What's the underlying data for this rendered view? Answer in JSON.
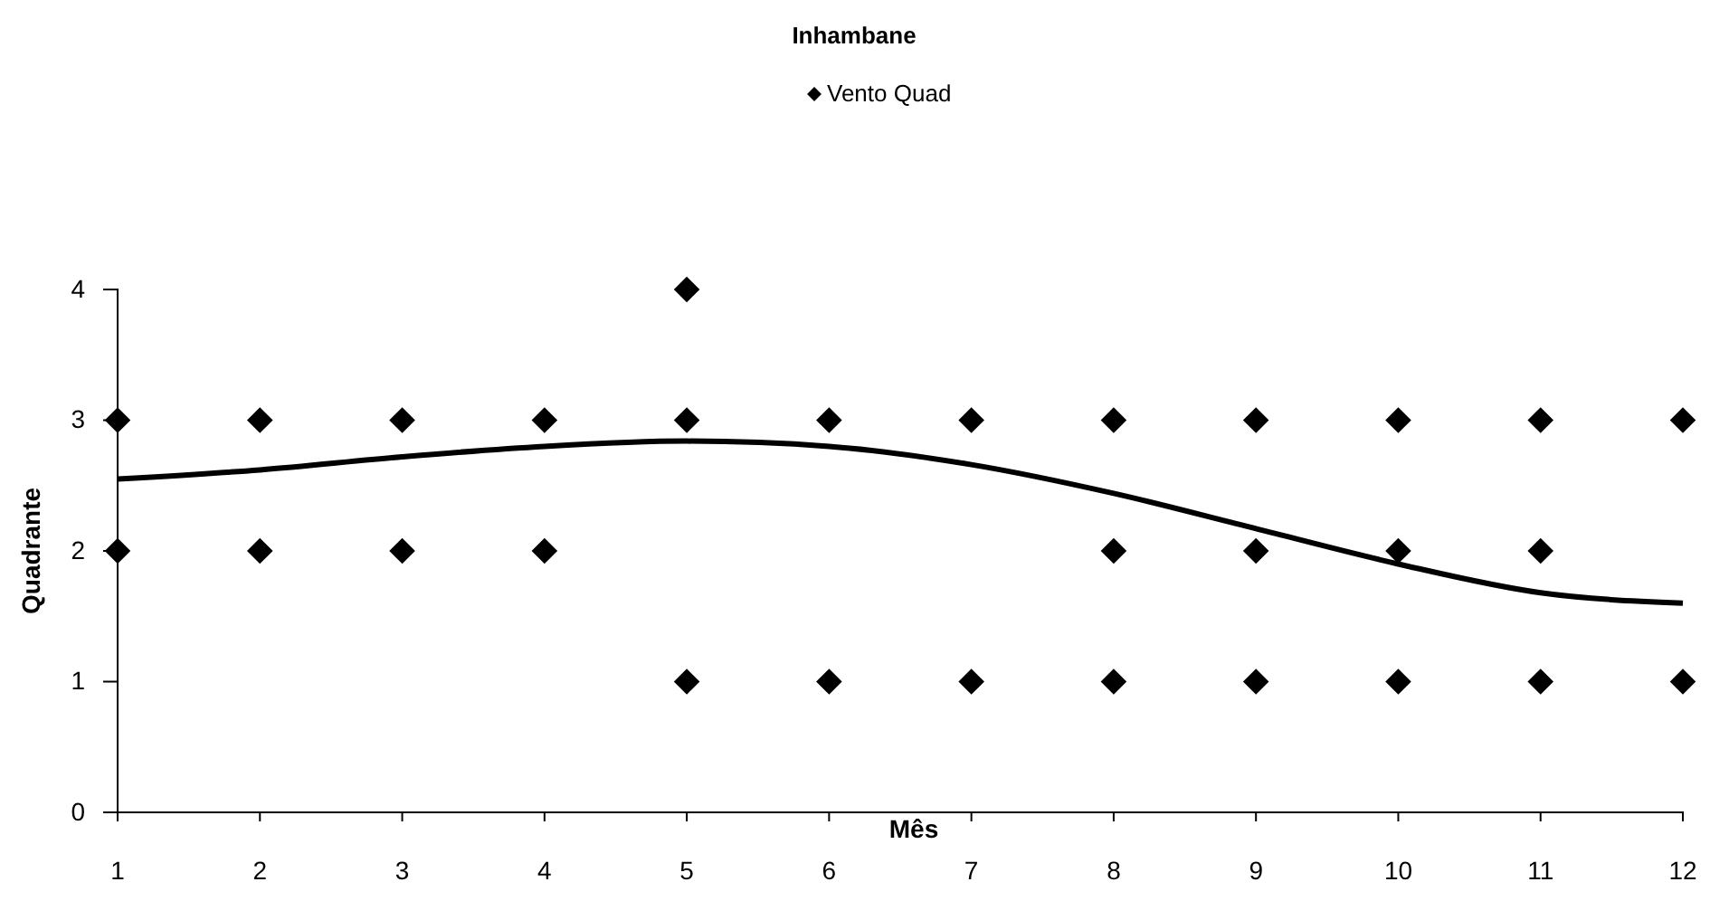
{
  "chart_data": {
    "type": "scatter",
    "title": "Inhambane",
    "xlabel": "Mês",
    "ylabel": "Quadrante",
    "legend": "top",
    "marker": "diamond",
    "grid": false,
    "xlim": [
      1,
      12
    ],
    "xticks": [
      1,
      2,
      3,
      4,
      5,
      6,
      7,
      8,
      9,
      10,
      11,
      12
    ],
    "ylim": [
      0,
      4
    ],
    "yticks": [
      0,
      1,
      2,
      3,
      4
    ],
    "series": [
      {
        "name": "Vento Quad",
        "type": "scatter",
        "color": "#000000",
        "x": [
          1,
          1,
          2,
          2,
          3,
          3,
          4,
          4,
          5,
          5,
          5,
          6,
          6,
          7,
          7,
          8,
          8,
          8,
          9,
          9,
          9,
          10,
          10,
          10,
          11,
          11,
          11,
          12,
          12
        ],
        "values": [
          3,
          2,
          3,
          2,
          3,
          2,
          3,
          2,
          4,
          3,
          1,
          3,
          1,
          3,
          1,
          3,
          2,
          1,
          3,
          2,
          1,
          3,
          2,
          1,
          3,
          2,
          1,
          3,
          1
        ]
      },
      {
        "type": "line",
        "color": "#000000",
        "marker": "none",
        "line_style": "solid",
        "x": [
          1,
          2,
          3,
          4,
          5,
          6,
          7,
          8,
          9,
          10,
          11,
          12
        ],
        "values": [
          2.55,
          2.62,
          2.72,
          2.8,
          2.84,
          2.8,
          2.66,
          2.44,
          2.17,
          1.9,
          1.68,
          1.6
        ]
      }
    ]
  }
}
